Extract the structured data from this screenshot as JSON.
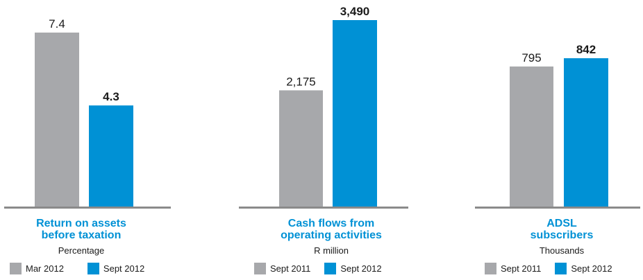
{
  "colors": {
    "gray": "#a7a8ab",
    "blue": "#0091d5",
    "axis": "#8a8a8a",
    "label": "#1a1a1a"
  },
  "chart_data": [
    {
      "type": "bar",
      "title_lines": [
        "Return on assets",
        "before taxation"
      ],
      "unit": "Percentage",
      "categories": [
        "Mar 2012",
        "Sept 2012"
      ],
      "values": [
        7.4,
        4.3
      ],
      "value_labels": [
        "7.4",
        "4.3"
      ],
      "bold": [
        false,
        true
      ],
      "colors": [
        "#a7a8ab",
        "#0091d5"
      ],
      "legend": [
        "Mar 2012",
        "Sept 2012"
      ],
      "ymax": 7.4
    },
    {
      "type": "bar",
      "title_lines": [
        "Cash flows from",
        "operating activities"
      ],
      "unit": "R million",
      "categories": [
        "Sept 2011",
        "Sept 2012"
      ],
      "values": [
        2175,
        3490
      ],
      "value_labels": [
        "2,175",
        "3,490"
      ],
      "bold": [
        false,
        true
      ],
      "colors": [
        "#a7a8ab",
        "#0091d5"
      ],
      "legend": [
        "Sept 2011",
        "Sept 2012"
      ],
      "ymax": 3490
    },
    {
      "type": "bar",
      "title_lines": [
        "ADSL",
        "subscribers"
      ],
      "unit": "Thousands",
      "categories": [
        "Sept 2011",
        "Sept 2012"
      ],
      "values": [
        795,
        842
      ],
      "value_labels": [
        "795",
        "842"
      ],
      "bold": [
        false,
        true
      ],
      "colors": [
        "#a7a8ab",
        "#0091d5"
      ],
      "legend": [
        "Sept 2011",
        "Sept 2012"
      ],
      "ymax": 1010
    }
  ]
}
